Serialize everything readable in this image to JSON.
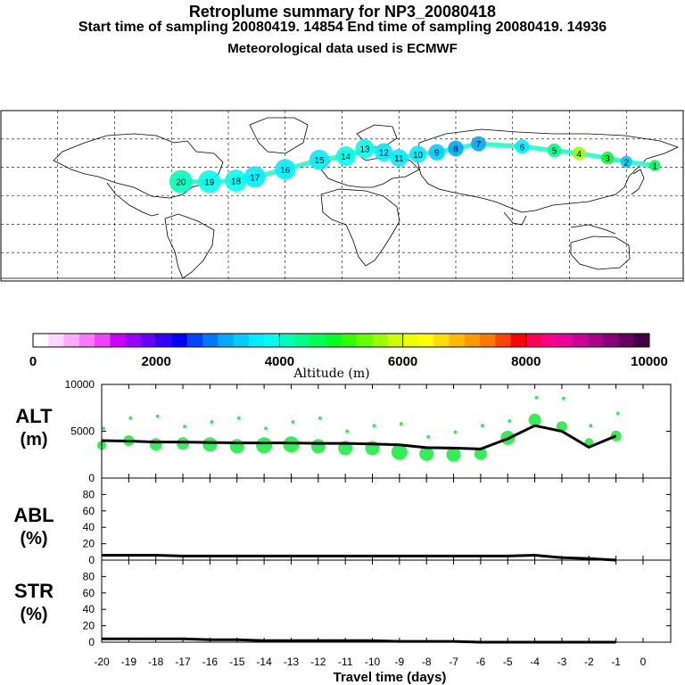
{
  "header": {
    "title": "Retroplume summary for NP3_20080418",
    "times": "Start time of sampling 20080419. 14854     End time of sampling 20080419. 14936",
    "met": "Meteorological data used is ECMWF"
  },
  "colorbar": {
    "label": "Altitude (m)",
    "ticks": [
      "0",
      "2000",
      "4000",
      "6000",
      "8000",
      "10000"
    ],
    "colors": [
      "#ffffff",
      "#ffd6ff",
      "#ffaaff",
      "#ff77ff",
      "#ee44ff",
      "#cc00ff",
      "#9900ff",
      "#6600ff",
      "#3300ff",
      "#0000ff",
      "#0044ff",
      "#0077ff",
      "#00aaff",
      "#00ccff",
      "#00eeff",
      "#00ffee",
      "#00ffbb",
      "#00ff88",
      "#00ff55",
      "#00ff22",
      "#33ff00",
      "#66ff00",
      "#99ff00",
      "#ccff00",
      "#eeff00",
      "#ffff00",
      "#ffdd00",
      "#ffbb00",
      "#ff9900",
      "#ff7700",
      "#ff4400",
      "#ff0000",
      "#ff0055",
      "#ff0088",
      "#ee0099",
      "#cc0099",
      "#aa0088",
      "#880077",
      "#660066",
      "#440044"
    ]
  },
  "map": {
    "markers": [
      {
        "label": "20",
        "value_m": 4000,
        "lon": -85,
        "lat": 15
      },
      {
        "label": "19",
        "value_m": 3900,
        "lon": -70,
        "lat": 15
      },
      {
        "label": "18",
        "value_m": 3800,
        "lon": -56,
        "lat": 16
      },
      {
        "label": "17",
        "value_m": 3700,
        "lon": -46,
        "lat": 20
      },
      {
        "label": "16",
        "value_m": 3600,
        "lon": -30,
        "lat": 28
      },
      {
        "label": "15",
        "value_m": 3700,
        "lon": -12,
        "lat": 38
      },
      {
        "label": "14",
        "value_m": 3800,
        "lon": 2,
        "lat": 42
      },
      {
        "label": "13",
        "value_m": 3800,
        "lon": 12,
        "lat": 50
      },
      {
        "label": "12",
        "value_m": 3700,
        "lon": 22,
        "lat": 46
      },
      {
        "label": "11",
        "value_m": 3600,
        "lon": 30,
        "lat": 40
      },
      {
        "label": "10",
        "value_m": 3500,
        "lon": 40,
        "lat": 44
      },
      {
        "label": "9",
        "value_m": 3300,
        "lon": 50,
        "lat": 46
      },
      {
        "label": "8",
        "value_m": 3200,
        "lon": 60,
        "lat": 50
      },
      {
        "label": "7",
        "value_m": 3200,
        "lon": 72,
        "lat": 55
      },
      {
        "label": "6",
        "value_m": 3500,
        "lon": 95,
        "lat": 52
      },
      {
        "label": "5",
        "value_m": 4300,
        "lon": 112,
        "lat": 48
      },
      {
        "label": "4",
        "value_m": 5600,
        "lon": 125,
        "lat": 45
      },
      {
        "label": "3",
        "value_m": 4800,
        "lon": 140,
        "lat": 40
      },
      {
        "label": "2",
        "value_m": 3300,
        "lon": 150,
        "lat": 36
      },
      {
        "label": "1",
        "value_m": 4500,
        "lon": 165,
        "lat": 32
      }
    ]
  },
  "panels": {
    "alt": {
      "label_top": "ALT",
      "label_bottom": "(m)",
      "ylim": [
        0,
        10000
      ],
      "yticks": [
        "0",
        "5000",
        "10000"
      ]
    },
    "abl": {
      "label_top": "ABL",
      "label_bottom": "(%)",
      "ylim": [
        0,
        100
      ],
      "yticks": [
        "0",
        "20",
        "40",
        "60",
        "80"
      ]
    },
    "str": {
      "label_top": "STR",
      "label_bottom": "(%)",
      "ylim": [
        0,
        100
      ],
      "yticks": [
        "0",
        "20",
        "40",
        "60",
        "80"
      ]
    }
  },
  "xaxis": {
    "label": "Travel time (days)",
    "ticks": [
      "-20",
      "-19",
      "-18",
      "-17",
      "-16",
      "-15",
      "-14",
      "-13",
      "-12",
      "-11",
      "-10",
      "-9",
      "-8",
      "-7",
      "-6",
      "-5",
      "-4",
      "-3",
      "-2",
      "-1",
      "0"
    ]
  },
  "chart_data": {
    "type": "line",
    "title": "Retroplume summary for NP3_20080418",
    "xlabel": "Travel time (days)",
    "x": [
      -20,
      -19,
      -18,
      -17,
      -16,
      -15,
      -14,
      -13,
      -12,
      -11,
      -10,
      -9,
      -8,
      -7,
      -6,
      -5,
      -4,
      -3,
      -2,
      -1
    ],
    "series": [
      {
        "name": "ALT",
        "ylabel": "(m)",
        "ylim": [
          0,
          10000
        ],
        "values": [
          4000,
          3950,
          3850,
          3850,
          3800,
          3750,
          3750,
          3750,
          3700,
          3700,
          3650,
          3550,
          3250,
          3200,
          3100,
          4200,
          5600,
          5000,
          3300,
          4500
        ]
      },
      {
        "name": "ABL",
        "ylabel": "(%)",
        "ylim": [
          0,
          100
        ],
        "values": [
          6,
          6,
          6,
          5,
          5,
          5,
          5,
          5,
          5,
          5,
          5,
          5,
          5,
          5,
          5,
          5,
          6,
          3,
          2,
          0
        ]
      },
      {
        "name": "STR",
        "ylabel": "(%)",
        "ylim": [
          0,
          100
        ],
        "values": [
          4,
          4,
          4,
          4,
          3,
          3,
          2,
          2,
          2,
          2,
          2,
          1,
          1,
          1,
          0,
          0,
          0,
          0,
          0,
          0
        ]
      }
    ],
    "clusters": [
      {
        "x": -20,
        "y": 3500,
        "r": 5
      },
      {
        "x": -19,
        "y": 4000,
        "r": 6
      },
      {
        "x": -18,
        "y": 3600,
        "r": 7
      },
      {
        "x": -17,
        "y": 3700,
        "r": 7
      },
      {
        "x": -16,
        "y": 3600,
        "r": 8
      },
      {
        "x": -15,
        "y": 3400,
        "r": 8
      },
      {
        "x": -14,
        "y": 3500,
        "r": 9
      },
      {
        "x": -13,
        "y": 3600,
        "r": 9
      },
      {
        "x": -12,
        "y": 3400,
        "r": 8
      },
      {
        "x": -11,
        "y": 3200,
        "r": 8
      },
      {
        "x": -10,
        "y": 3200,
        "r": 8
      },
      {
        "x": -9,
        "y": 2800,
        "r": 9
      },
      {
        "x": -8,
        "y": 2600,
        "r": 8
      },
      {
        "x": -7,
        "y": 2500,
        "r": 8
      },
      {
        "x": -6,
        "y": 2600,
        "r": 7
      },
      {
        "x": -5,
        "y": 4300,
        "r": 8
      },
      {
        "x": -4,
        "y": 6200,
        "r": 7
      },
      {
        "x": -3,
        "y": 5500,
        "r": 6
      },
      {
        "x": -2,
        "y": 3800,
        "r": 5
      },
      {
        "x": -1,
        "y": 4500,
        "r": 6
      }
    ]
  }
}
